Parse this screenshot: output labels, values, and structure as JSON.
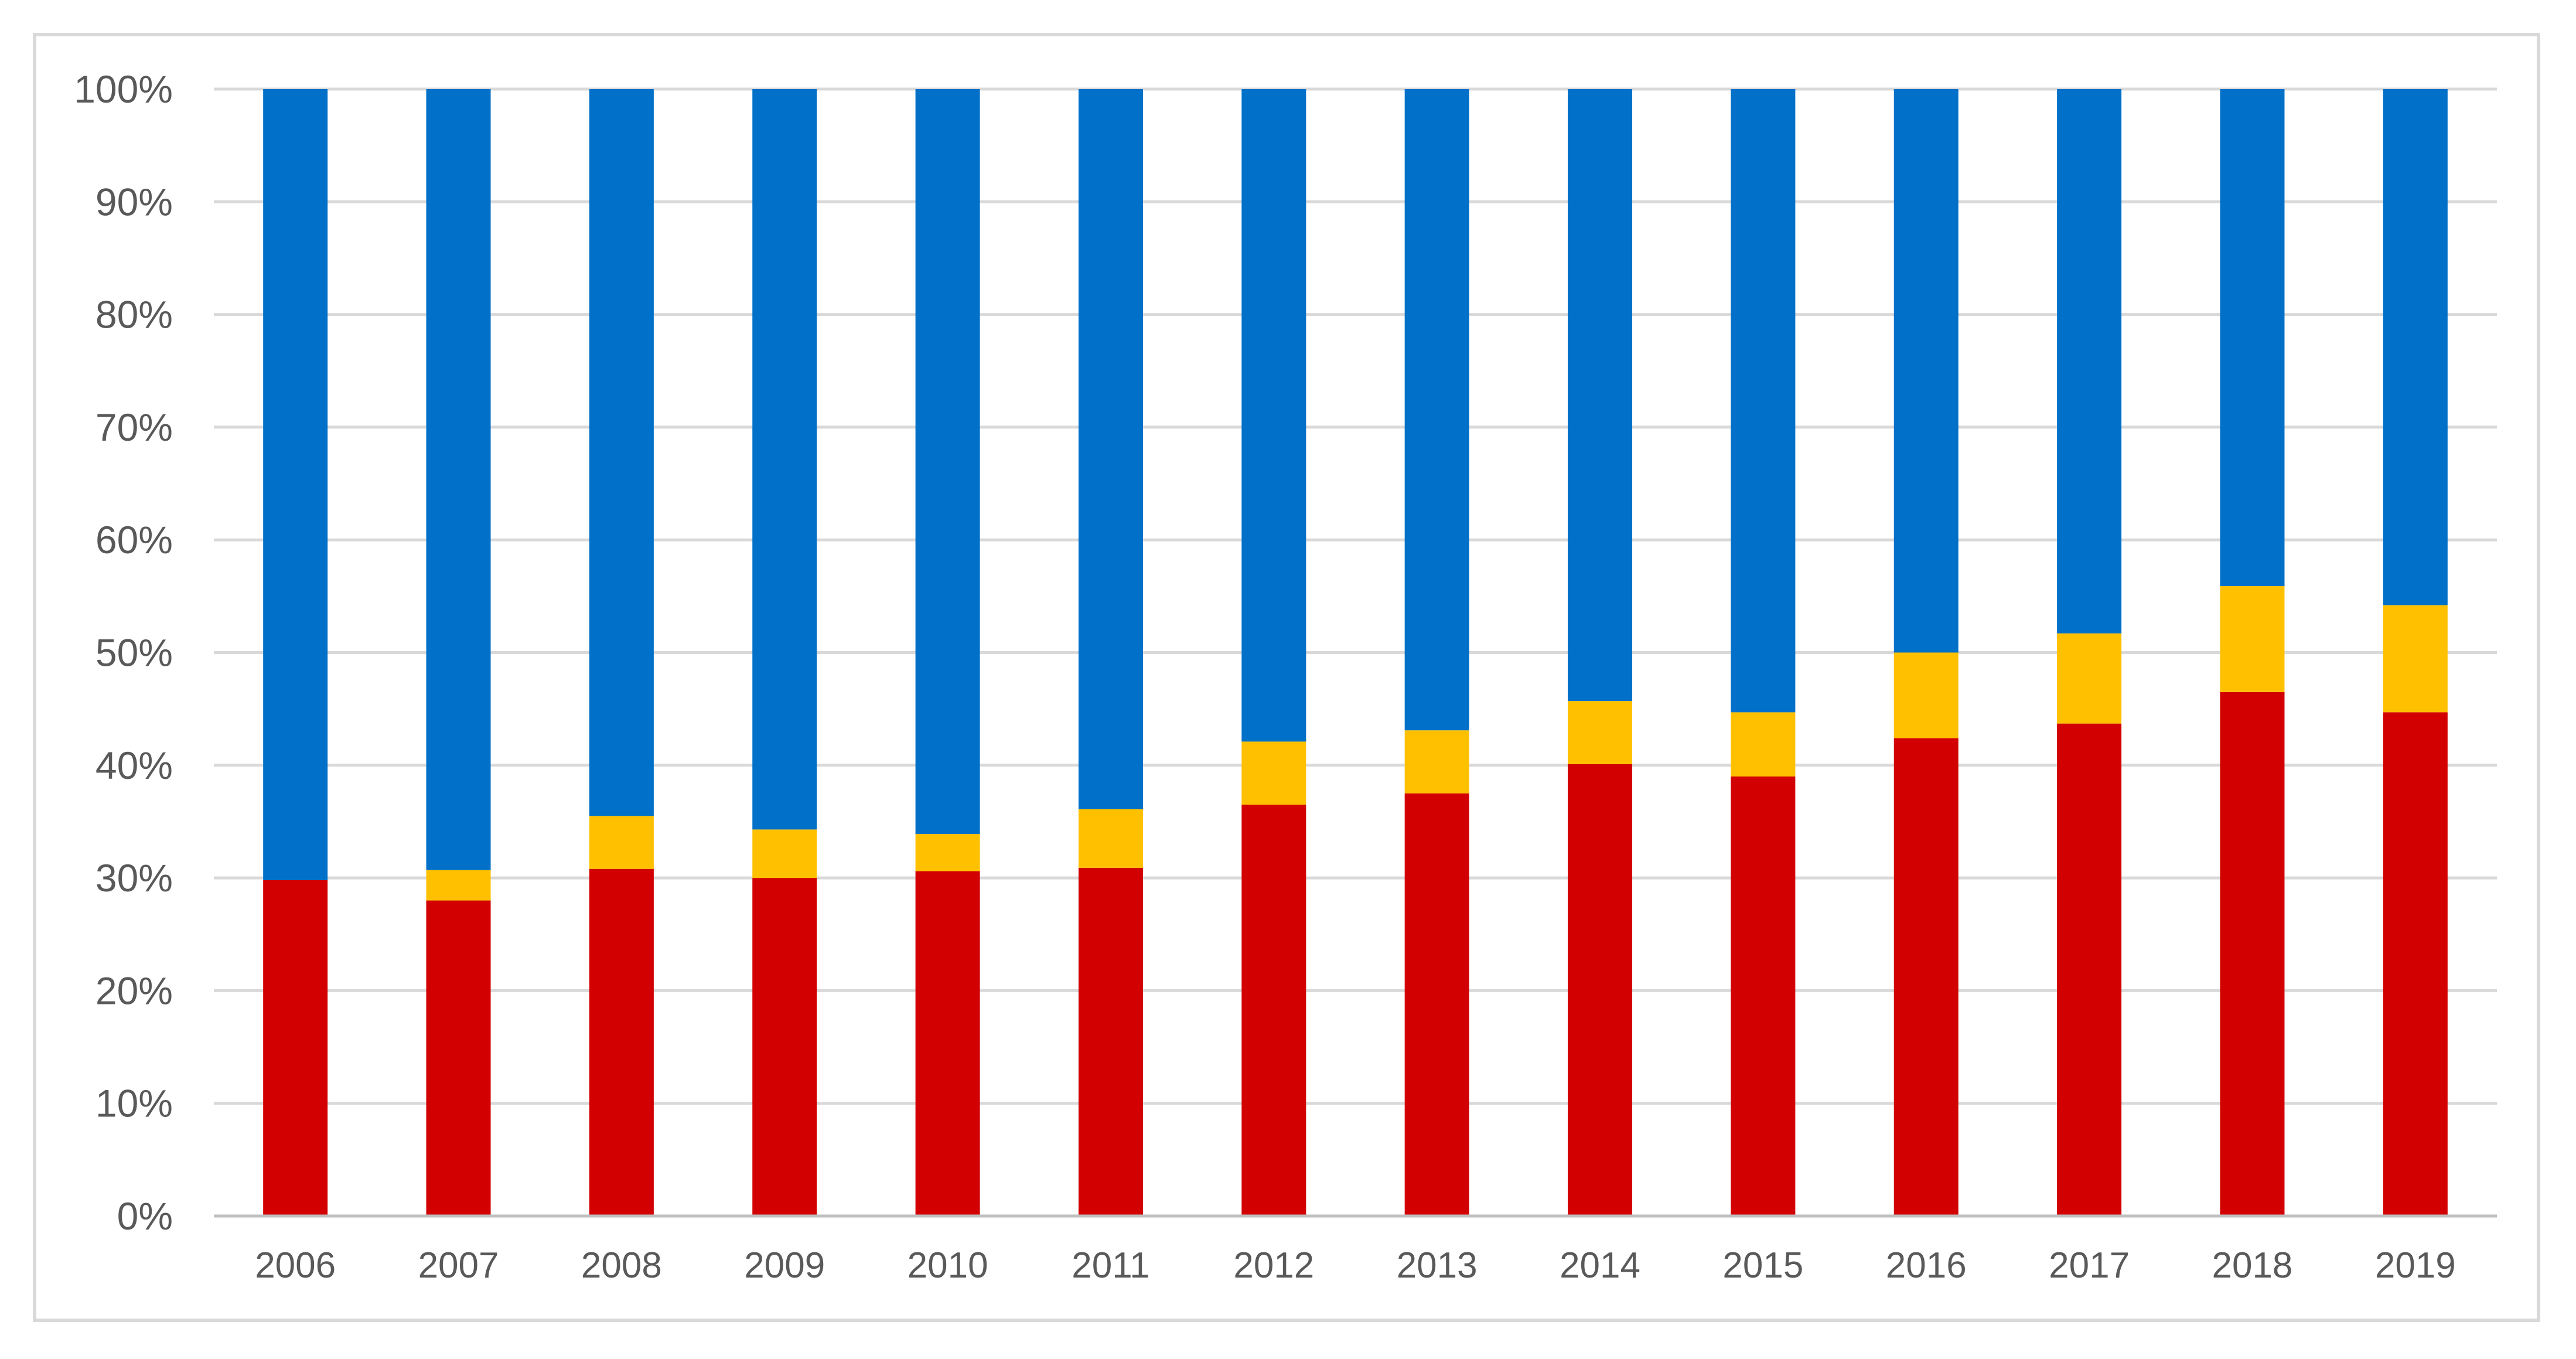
{
  "chart_data": {
    "type": "bar",
    "stacked": true,
    "normalized": true,
    "title": "",
    "xlabel": "",
    "ylabel": "",
    "ylim": [
      0,
      100
    ],
    "y_ticks": [
      "0%",
      "10%",
      "20%",
      "30%",
      "40%",
      "50%",
      "60%",
      "70%",
      "80%",
      "90%",
      "100%"
    ],
    "grid": true,
    "legend": "none",
    "categories": [
      "2006",
      "2007",
      "2008",
      "2009",
      "2010",
      "2011",
      "2012",
      "2013",
      "2014",
      "2015",
      "2016",
      "2017",
      "2018",
      "2019"
    ],
    "series": [
      {
        "name": "red",
        "color": "#d20000",
        "values": [
          29.8,
          28.0,
          30.8,
          30.0,
          30.6,
          30.9,
          36.5,
          37.5,
          40.1,
          39.0,
          42.4,
          43.7,
          46.5,
          44.7
        ]
      },
      {
        "name": "yellow",
        "color": "#ffc000",
        "values": [
          0.0,
          2.7,
          4.7,
          4.3,
          3.3,
          5.2,
          5.6,
          5.6,
          5.6,
          5.7,
          7.6,
          8.0,
          9.4,
          9.5
        ]
      },
      {
        "name": "blue",
        "color": "#0070c8",
        "values": [
          70.2,
          69.3,
          64.5,
          65.7,
          66.1,
          63.9,
          57.9,
          56.9,
          54.3,
          55.3,
          50.0,
          48.3,
          44.1,
          45.8
        ]
      }
    ],
    "colors": {
      "grid": "#d9d9d9",
      "axis": "#bfbfbf",
      "tick_text": "#595959",
      "frame": "#d9d9d9"
    }
  }
}
